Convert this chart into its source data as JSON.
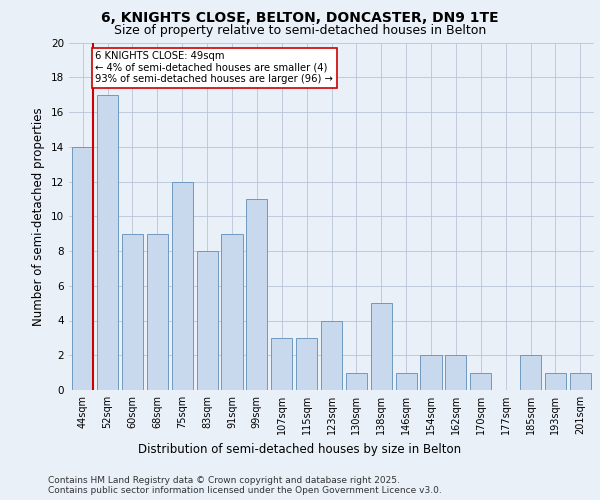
{
  "title_line1": "6, KNIGHTS CLOSE, BELTON, DONCASTER, DN9 1TE",
  "title_line2": "Size of property relative to semi-detached houses in Belton",
  "xlabel": "Distribution of semi-detached houses by size in Belton",
  "ylabel": "Number of semi-detached properties",
  "categories": [
    "44sqm",
    "52sqm",
    "60sqm",
    "68sqm",
    "75sqm",
    "83sqm",
    "91sqm",
    "99sqm",
    "107sqm",
    "115sqm",
    "123sqm",
    "130sqm",
    "138sqm",
    "146sqm",
    "154sqm",
    "162sqm",
    "170sqm",
    "177sqm",
    "185sqm",
    "193sqm",
    "201sqm"
  ],
  "values": [
    14,
    17,
    9,
    9,
    12,
    8,
    9,
    11,
    3,
    3,
    4,
    1,
    5,
    1,
    2,
    2,
    1,
    0,
    2,
    1,
    1
  ],
  "bar_color": "#c9d9ed",
  "bar_edge_color": "#7098be",
  "red_line_color": "#cc0000",
  "annotation_text": "6 KNIGHTS CLOSE: 49sqm\n← 4% of semi-detached houses are smaller (4)\n93% of semi-detached houses are larger (96) →",
  "annotation_box_color": "#ffffff",
  "annotation_box_edge": "#cc0000",
  "ylim": [
    0,
    20
  ],
  "yticks": [
    0,
    2,
    4,
    6,
    8,
    10,
    12,
    14,
    16,
    18,
    20
  ],
  "footer": "Contains HM Land Registry data © Crown copyright and database right 2025.\nContains public sector information licensed under the Open Government Licence v3.0.",
  "bg_color": "#eaf0f8",
  "plot_bg_color": "#eaf0f8",
  "title_fontsize": 10,
  "subtitle_fontsize": 9,
  "tick_fontsize": 7,
  "label_fontsize": 8.5,
  "footer_fontsize": 6.5
}
